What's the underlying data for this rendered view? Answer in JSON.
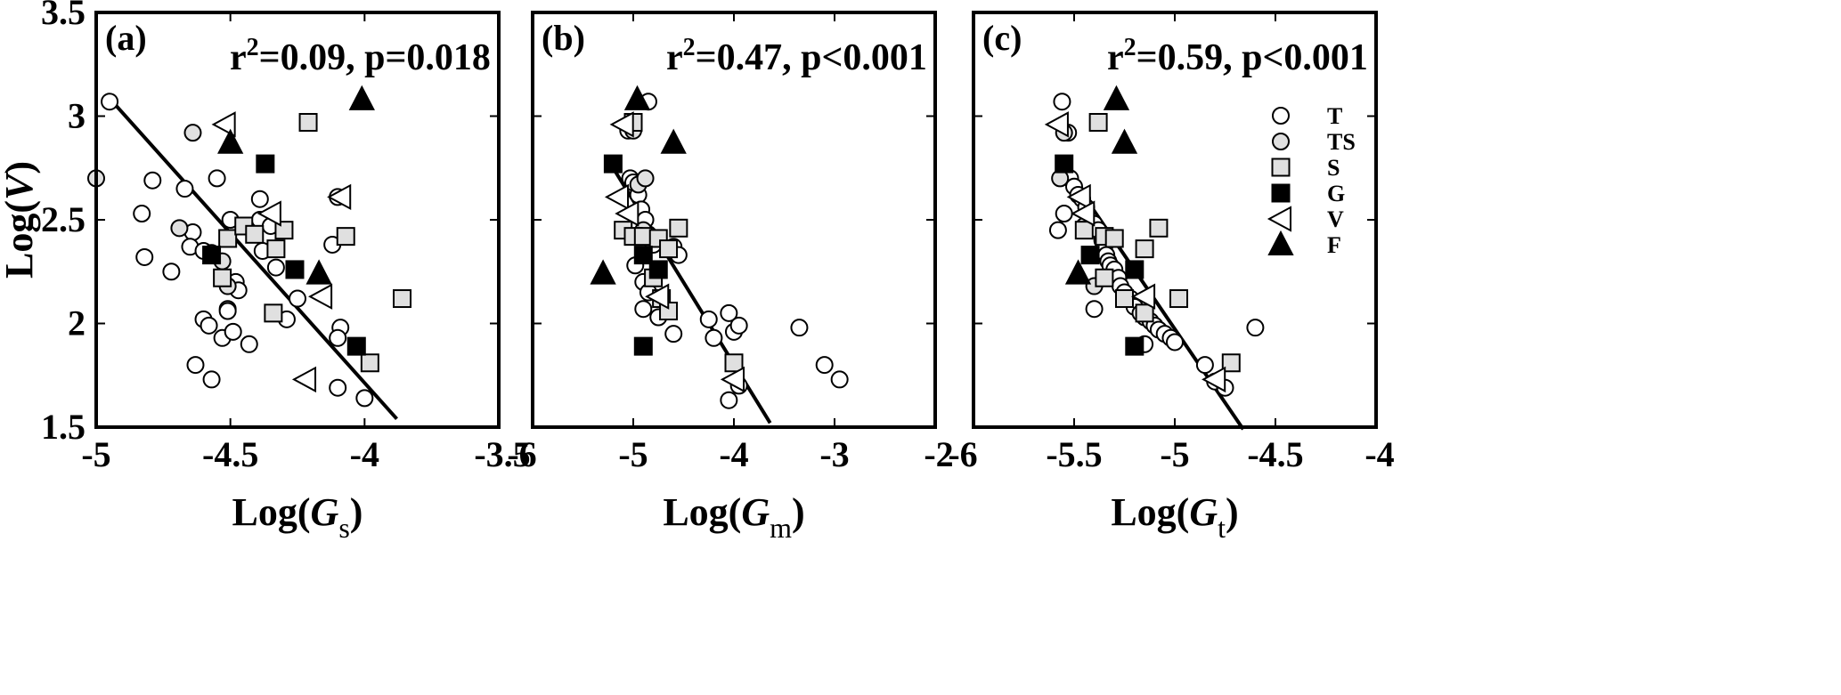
{
  "chart_data": [
    {
      "type": "scatter",
      "panel_label": "(a)",
      "stat": {
        "r2_prefix": "r",
        "r2_sup": "2",
        "text": "=0.09, p=0.018"
      },
      "xlabel": {
        "prefix": "Log(",
        "var": "G",
        "sub": "s",
        "suffix": ")"
      },
      "ylabel": {
        "prefix": "Log(",
        "var": "V",
        "suffix": ")"
      },
      "xlim": [
        -5,
        -3.5
      ],
      "ylim": [
        1.5,
        3.5
      ],
      "xticks": [
        -5,
        -4.5,
        -4,
        -3.5
      ],
      "xtick_labels": [
        "-5",
        "-4.5",
        "-4",
        "-3.5"
      ],
      "yticks": [
        1.5,
        2,
        2.5,
        3,
        3.5
      ],
      "ytick_labels": [
        "1.5",
        "2",
        "2.5",
        "3",
        "3.5"
      ],
      "show_yticklabels": true,
      "show_legend": false,
      "fit_line": [
        [
          -4.96,
          3.1
        ],
        [
          -3.88,
          1.54
        ]
      ],
      "series": [
        {
          "name": "T",
          "marker": "circle-open",
          "points": [
            [
              -4.95,
              3.07
            ],
            [
              -4.79,
              2.69
            ],
            [
              -4.83,
              2.53
            ],
            [
              -4.82,
              2.32
            ],
            [
              -4.72,
              2.25
            ],
            [
              -4.67,
              2.65
            ],
            [
              -4.64,
              2.44
            ],
            [
              -4.65,
              2.37
            ],
            [
              -4.6,
              2.35
            ],
            [
              -4.57,
              2.34
            ],
            [
              -4.55,
              2.7
            ],
            [
              -4.5,
              2.5
            ],
            [
              -4.48,
              2.2
            ],
            [
              -4.47,
              2.16
            ],
            [
              -4.51,
              2.07
            ],
            [
              -4.51,
              2.06
            ],
            [
              -4.6,
              2.02
            ],
            [
              -4.58,
              1.99
            ],
            [
              -4.53,
              1.93
            ],
            [
              -4.49,
              1.96
            ],
            [
              -4.43,
              1.9
            ],
            [
              -4.63,
              1.8
            ],
            [
              -4.57,
              1.73
            ],
            [
              -4.39,
              2.6
            ],
            [
              -4.39,
              2.5
            ],
            [
              -4.38,
              2.35
            ],
            [
              -4.35,
              2.47
            ],
            [
              -4.33,
              2.27
            ],
            [
              -4.29,
              2.02
            ],
            [
              -4.25,
              2.12
            ],
            [
              -4.1,
              2.61
            ],
            [
              -4.12,
              2.38
            ],
            [
              -4.09,
              1.98
            ],
            [
              -4.1,
              1.93
            ],
            [
              -4.1,
              1.69
            ],
            [
              -4.0,
              1.64
            ]
          ]
        },
        {
          "name": "TS",
          "marker": "circle-gray",
          "points": [
            [
              -5.0,
              2.7
            ],
            [
              -4.64,
              2.92
            ],
            [
              -4.69,
              2.46
            ],
            [
              -4.53,
              2.3
            ],
            [
              -4.51,
              2.18
            ]
          ]
        },
        {
          "name": "S",
          "marker": "square-gray",
          "points": [
            [
              -4.21,
              2.97
            ],
            [
              -4.51,
              2.41
            ],
            [
              -4.45,
              2.47
            ],
            [
              -4.41,
              2.43
            ],
            [
              -4.33,
              2.36
            ],
            [
              -4.3,
              2.45
            ],
            [
              -4.07,
              2.42
            ],
            [
              -4.53,
              2.22
            ],
            [
              -4.34,
              2.05
            ],
            [
              -3.98,
              1.81
            ],
            [
              -3.86,
              2.12
            ]
          ]
        },
        {
          "name": "G",
          "marker": "square-black",
          "points": [
            [
              -4.37,
              2.77
            ],
            [
              -4.57,
              2.33
            ],
            [
              -4.26,
              2.26
            ],
            [
              -4.03,
              1.89
            ]
          ]
        },
        {
          "name": "V",
          "marker": "triangle-left-open",
          "points": [
            [
              -4.52,
              2.96
            ],
            [
              -4.35,
              2.53
            ],
            [
              -4.09,
              2.61
            ],
            [
              -4.16,
              2.13
            ],
            [
              -4.22,
              1.73
            ]
          ]
        },
        {
          "name": "F",
          "marker": "triangle-up-black",
          "points": [
            [
              -4.01,
              3.08
            ],
            [
              -4.5,
              2.87
            ],
            [
              -4.17,
              2.24
            ]
          ]
        }
      ]
    },
    {
      "type": "scatter",
      "panel_label": "(b)",
      "stat": {
        "r2_prefix": "r",
        "r2_sup": "2",
        "text": "=0.47, p<0.001"
      },
      "xlabel": {
        "prefix": "Log(",
        "var": "G",
        "sub": "m",
        "suffix": ")"
      },
      "ylabel": null,
      "xlim": [
        -6,
        -2
      ],
      "ylim": [
        1.5,
        3.5
      ],
      "xticks": [
        -6,
        -5,
        -4,
        -3,
        -2
      ],
      "xtick_labels": [
        "-6",
        "-5",
        "-4",
        "-3",
        "-2"
      ],
      "yticks": [
        1.5,
        2,
        2.5,
        3,
        3.5
      ],
      "ytick_labels": [],
      "show_yticklabels": false,
      "show_legend": false,
      "fit_line": [
        [
          -5.2,
          2.75
        ],
        [
          -3.64,
          1.52
        ]
      ],
      "series": [
        {
          "name": "T",
          "marker": "circle-open",
          "points": [
            [
              -4.85,
              3.07
            ],
            [
              -5.05,
              2.93
            ],
            [
              -5.03,
              2.7
            ],
            [
              -5.0,
              2.68
            ],
            [
              -4.95,
              2.62
            ],
            [
              -4.92,
              2.55
            ],
            [
              -4.88,
              2.5
            ],
            [
              -4.85,
              2.43
            ],
            [
              -4.8,
              2.38
            ],
            [
              -4.98,
              2.28
            ],
            [
              -4.9,
              2.2
            ],
            [
              -4.85,
              2.15
            ],
            [
              -4.9,
              2.07
            ],
            [
              -4.75,
              2.03
            ],
            [
              -4.6,
              1.95
            ],
            [
              -4.6,
              2.37
            ],
            [
              -4.55,
              2.33
            ],
            [
              -4.25,
              2.02
            ],
            [
              -4.2,
              1.93
            ],
            [
              -4.05,
              2.05
            ],
            [
              -4.0,
              1.96
            ],
            [
              -3.95,
              1.99
            ],
            [
              -3.95,
              1.7
            ],
            [
              -3.35,
              1.98
            ],
            [
              -3.1,
              1.8
            ],
            [
              -2.95,
              1.73
            ],
            [
              -4.05,
              1.63
            ]
          ]
        },
        {
          "name": "TS",
          "marker": "circle-gray",
          "points": [
            [
              -5.0,
              2.93
            ],
            [
              -4.95,
              2.67
            ],
            [
              -4.88,
              2.7
            ],
            [
              -4.9,
              2.45
            ]
          ]
        },
        {
          "name": "S",
          "marker": "square-gray",
          "points": [
            [
              -5.0,
              2.97
            ],
            [
              -4.55,
              2.46
            ],
            [
              -5.1,
              2.45
            ],
            [
              -5.0,
              2.42
            ],
            [
              -4.9,
              2.42
            ],
            [
              -4.75,
              2.41
            ],
            [
              -4.65,
              2.36
            ],
            [
              -4.8,
              2.22
            ],
            [
              -4.72,
              2.12
            ],
            [
              -4.65,
              2.06
            ],
            [
              -4.0,
              1.81
            ]
          ]
        },
        {
          "name": "G",
          "marker": "square-black",
          "points": [
            [
              -5.2,
              2.77
            ],
            [
              -4.9,
              2.33
            ],
            [
              -4.75,
              2.26
            ],
            [
              -4.9,
              1.89
            ]
          ]
        },
        {
          "name": "V",
          "marker": "triangle-left-open",
          "points": [
            [
              -5.1,
              2.96
            ],
            [
              -5.15,
              2.61
            ],
            [
              -5.05,
              2.53
            ],
            [
              -4.75,
              2.13
            ],
            [
              -4.0,
              1.73
            ]
          ]
        },
        {
          "name": "F",
          "marker": "triangle-up-black",
          "points": [
            [
              -4.96,
              3.08
            ],
            [
              -4.6,
              2.87
            ],
            [
              -5.3,
              2.24
            ]
          ]
        }
      ]
    },
    {
      "type": "scatter",
      "panel_label": "(c)",
      "stat": {
        "r2_prefix": "r",
        "r2_sup": "2",
        "text": "=0.59, p<0.001"
      },
      "xlabel": {
        "prefix": "Log(",
        "var": "G",
        "sub": "t",
        "suffix": ")"
      },
      "ylabel": null,
      "xlim": [
        -6,
        -4
      ],
      "ylim": [
        1.5,
        3.5
      ],
      "xticks": [
        -6,
        -5.5,
        -5,
        -4.5,
        -4
      ],
      "xtick_labels": [
        "-6",
        "-5.5",
        "-5",
        "-4.5",
        "-4"
      ],
      "yticks": [
        1.5,
        2,
        2.5,
        3,
        3.5
      ],
      "ytick_labels": [],
      "show_yticklabels": false,
      "show_legend": true,
      "fit_line": [
        [
          -5.56,
          2.77
        ],
        [
          -4.66,
          1.49
        ]
      ],
      "series": [
        {
          "name": "T",
          "marker": "circle-open",
          "points": [
            [
              -5.56,
              3.07
            ],
            [
              -5.53,
              2.92
            ],
            [
              -5.52,
              2.7
            ],
            [
              -5.5,
              2.66
            ],
            [
              -5.48,
              2.62
            ],
            [
              -5.46,
              2.6
            ],
            [
              -5.44,
              2.56
            ],
            [
              -5.42,
              2.5
            ],
            [
              -5.4,
              2.48
            ],
            [
              -5.38,
              2.45
            ],
            [
              -5.36,
              2.4
            ],
            [
              -5.35,
              2.37
            ],
            [
              -5.34,
              2.33
            ],
            [
              -5.33,
              2.3
            ],
            [
              -5.32,
              2.28
            ],
            [
              -5.3,
              2.26
            ],
            [
              -5.28,
              2.22
            ],
            [
              -5.27,
              2.18
            ],
            [
              -5.25,
              2.15
            ],
            [
              -5.22,
              2.12
            ],
            [
              -5.2,
              2.08
            ],
            [
              -5.17,
              2.05
            ],
            [
              -5.15,
              2.03
            ],
            [
              -5.12,
              2.01
            ],
            [
              -5.1,
              1.99
            ],
            [
              -5.08,
              1.97
            ],
            [
              -5.05,
              1.95
            ],
            [
              -5.02,
              1.93
            ],
            [
              -5.0,
              1.91
            ],
            [
              -5.15,
              1.9
            ],
            [
              -5.4,
              2.07
            ],
            [
              -5.55,
              2.53
            ],
            [
              -5.58,
              2.45
            ],
            [
              -4.85,
              1.8
            ],
            [
              -4.8,
              1.72
            ],
            [
              -4.75,
              1.69
            ],
            [
              -4.6,
              1.98
            ]
          ]
        },
        {
          "name": "TS",
          "marker": "circle-gray",
          "points": [
            [
              -5.57,
              2.7
            ],
            [
              -5.55,
              2.92
            ],
            [
              -5.45,
              2.47
            ],
            [
              -5.4,
              2.18
            ]
          ]
        },
        {
          "name": "S",
          "marker": "square-gray",
          "points": [
            [
              -5.38,
              2.97
            ],
            [
              -5.08,
              2.46
            ],
            [
              -5.45,
              2.45
            ],
            [
              -5.35,
              2.42
            ],
            [
              -5.3,
              2.41
            ],
            [
              -5.15,
              2.36
            ],
            [
              -5.35,
              2.22
            ],
            [
              -5.25,
              2.12
            ],
            [
              -5.15,
              2.05
            ],
            [
              -4.98,
              2.12
            ],
            [
              -4.72,
              1.81
            ]
          ]
        },
        {
          "name": "G",
          "marker": "square-black",
          "points": [
            [
              -5.55,
              2.77
            ],
            [
              -5.42,
              2.33
            ],
            [
              -5.2,
              2.26
            ],
            [
              -5.2,
              1.89
            ]
          ]
        },
        {
          "name": "V",
          "marker": "triangle-left-open",
          "points": [
            [
              -5.58,
              2.96
            ],
            [
              -5.47,
              2.61
            ],
            [
              -5.45,
              2.53
            ],
            [
              -5.15,
              2.13
            ],
            [
              -4.8,
              1.73
            ]
          ]
        },
        {
          "name": "F",
          "marker": "triangle-up-black",
          "points": [
            [
              -5.29,
              3.08
            ],
            [
              -5.25,
              2.87
            ],
            [
              -5.48,
              2.24
            ]
          ]
        }
      ],
      "legend": [
        {
          "label": "T",
          "marker": "circle-open"
        },
        {
          "label": "TS",
          "marker": "circle-gray"
        },
        {
          "label": "S",
          "marker": "square-gray"
        },
        {
          "label": "G",
          "marker": "square-black"
        },
        {
          "label": "V",
          "marker": "triangle-left-open"
        },
        {
          "label": "F",
          "marker": "triangle-up-black"
        }
      ]
    }
  ],
  "colors": {
    "axis": "#000000",
    "marker_fill_gray": "#e0e0e0",
    "marker_fill_black": "#000000",
    "marker_fill_open": "#ffffff"
  }
}
